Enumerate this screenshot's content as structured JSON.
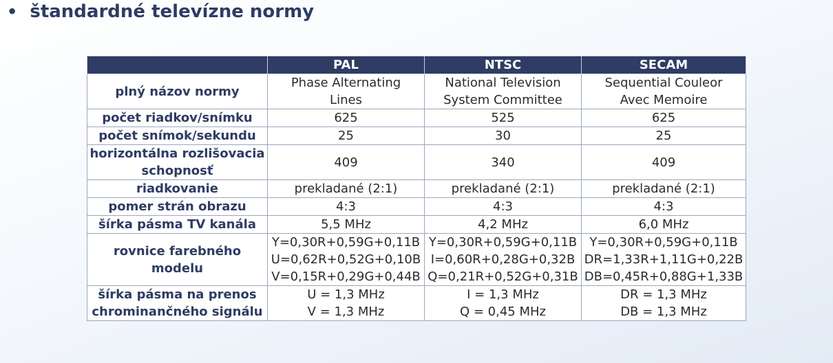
{
  "heading": {
    "bullet": "•",
    "title": "štandardné televízne normy"
  },
  "table": {
    "columns": [
      "",
      "PAL",
      "NTSC",
      "SECAM"
    ],
    "rows": [
      {
        "label": [
          "plný názov normy"
        ],
        "pal": [
          "Phase Alternating",
          "Lines"
        ],
        "ntsc": [
          "National Television",
          "System Committee"
        ],
        "secam": [
          "Sequential Couleor",
          "Avec Memoire"
        ]
      },
      {
        "label": [
          "počet riadkov/snímku"
        ],
        "pal": [
          "625"
        ],
        "ntsc": [
          "525"
        ],
        "secam": [
          "625"
        ]
      },
      {
        "label": [
          "počet snímok/sekundu"
        ],
        "pal": [
          "25"
        ],
        "ntsc": [
          "30"
        ],
        "secam": [
          "25"
        ]
      },
      {
        "label": [
          "horizontálna rozlišovacia",
          "schopnosť"
        ],
        "pal": [
          "409"
        ],
        "ntsc": [
          "340"
        ],
        "secam": [
          "409"
        ]
      },
      {
        "label": [
          "riadkovanie"
        ],
        "pal": [
          "prekladané (2:1)"
        ],
        "ntsc": [
          "prekladané (2:1)"
        ],
        "secam": [
          "prekladané (2:1)"
        ]
      },
      {
        "label": [
          "pomer strán obrazu"
        ],
        "pal": [
          "4:3"
        ],
        "ntsc": [
          "4:3"
        ],
        "secam": [
          "4:3"
        ]
      },
      {
        "label": [
          "šírka pásma TV kanála"
        ],
        "pal": [
          "5,5 MHz"
        ],
        "ntsc": [
          "4,2 MHz"
        ],
        "secam": [
          "6,0 MHz"
        ]
      },
      {
        "label": [
          "rovnice farebného",
          "modelu"
        ],
        "pal": [
          "Y=0,30R+0,59G+0,11B",
          "U=0,62R+0,52G+0,10B",
          "V=0,15R+0,29G+0,44B"
        ],
        "ntsc": [
          "Y=0,30R+0,59G+0,11B",
          "I=0,60R+0,28G+0,32B",
          "Q=0,21R+0,52G+0,31B"
        ],
        "secam": [
          "Y=0,30R+0,59G+0,11B",
          "DR=1,33R+1,11G+0,22B",
          "DB=0,45R+0,88G+1,33B"
        ]
      },
      {
        "label": [
          "šírka pásma na prenos",
          "chrominančného signálu"
        ],
        "pal": [
          "U = 1,3 MHz",
          "V = 1,3 MHz"
        ],
        "ntsc": [
          "I = 1,3 MHz",
          "Q = 0,45 MHz"
        ],
        "secam": [
          "DR = 1,3 MHz",
          "DB = 1,3 MHz"
        ]
      }
    ]
  }
}
